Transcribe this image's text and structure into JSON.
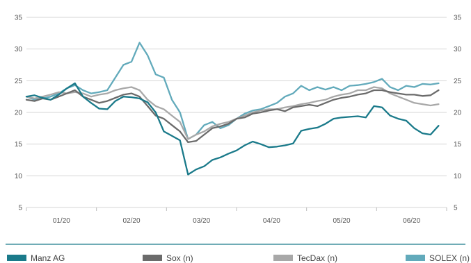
{
  "chart_data": {
    "type": "line",
    "title": "",
    "xlabel": "",
    "ylabel": "",
    "ylim": [
      5,
      35
    ],
    "y_ticks": [
      5,
      10,
      15,
      20,
      25,
      30,
      35
    ],
    "y_tick_labels": [
      "5",
      "10",
      "15",
      "20",
      "25",
      "30",
      "35"
    ],
    "y_axis_both_sides": true,
    "x_domain": [
      0,
      26
    ],
    "x_tick_labels": [
      "01/20",
      "02/20",
      "03/20",
      "04/20",
      "05/20",
      "06/20"
    ],
    "grid": "horizontal",
    "legend_position": "bottom",
    "series": [
      {
        "name": "Manz AG",
        "color": "#1a7a8a",
        "x": [
          0,
          0.5,
          1,
          1.5,
          2,
          2.5,
          3,
          3.5,
          4,
          4.5,
          5,
          5.5,
          6,
          6.5,
          7,
          7.5,
          8,
          8.5,
          9,
          9.5,
          10,
          10.5,
          11,
          11.5,
          12,
          12.5,
          13,
          13.5,
          14,
          14.5,
          15,
          15.5,
          16,
          16.5,
          17,
          17.5,
          18,
          18.5,
          19,
          19.5,
          20,
          20.5,
          21,
          21.5,
          22,
          22.5,
          23,
          23.5,
          24,
          24.5,
          25,
          25.5
        ],
        "values": [
          22.5,
          22.7,
          22.3,
          22.0,
          22.8,
          23.8,
          24.6,
          22.5,
          21.5,
          20.6,
          20.5,
          21.8,
          22.5,
          22.4,
          22.2,
          21.6,
          20.0,
          17.0,
          16.3,
          15.6,
          10.2,
          11.0,
          11.5,
          12.5,
          12.9,
          13.5,
          14.0,
          14.8,
          15.4,
          15.0,
          14.5,
          14.6,
          14.8,
          15.1,
          17.1,
          17.4,
          17.6,
          18.2,
          19.0,
          19.2,
          19.3,
          19.4,
          19.2,
          21.0,
          20.8,
          19.5,
          19.0,
          18.7,
          17.5,
          16.7,
          16.5,
          17.9
        ]
      },
      {
        "name": "Sox (n)",
        "color": "#6b6b6b",
        "x": [
          0,
          0.5,
          1,
          1.5,
          2,
          2.5,
          3,
          3.5,
          4,
          4.5,
          5,
          5.5,
          6,
          6.5,
          7,
          7.5,
          8,
          8.5,
          9,
          9.5,
          10,
          10.5,
          11,
          11.5,
          12,
          12.5,
          13,
          13.5,
          14,
          14.5,
          15,
          15.5,
          16,
          16.5,
          17,
          17.5,
          18,
          18.5,
          19,
          19.5,
          20,
          20.5,
          21,
          21.5,
          22,
          22.5,
          23,
          23.5,
          24,
          24.5,
          25,
          25.5
        ],
        "values": [
          22.0,
          21.8,
          22.2,
          22.0,
          22.5,
          23.0,
          23.5,
          22.5,
          22.0,
          21.5,
          21.8,
          22.3,
          22.8,
          23.0,
          22.5,
          21.0,
          19.5,
          19.0,
          18.0,
          17.0,
          15.3,
          15.5,
          16.5,
          17.5,
          17.8,
          18.2,
          19.0,
          19.2,
          19.8,
          20.0,
          20.3,
          20.5,
          20.2,
          20.8,
          21.0,
          21.2,
          21.0,
          21.5,
          22.0,
          22.3,
          22.5,
          22.8,
          23.0,
          23.5,
          23.5,
          23.2,
          23.0,
          22.8,
          22.8,
          22.6,
          22.7,
          23.5
        ]
      },
      {
        "name": "TecDax (n)",
        "color": "#a8a8a8",
        "x": [
          0,
          0.5,
          1,
          1.5,
          2,
          2.5,
          3,
          3.5,
          4,
          4.5,
          5,
          5.5,
          6,
          6.5,
          7,
          7.5,
          8,
          8.5,
          9,
          9.5,
          10,
          10.5,
          11,
          11.5,
          12,
          12.5,
          13,
          13.5,
          14,
          14.5,
          15,
          15.5,
          16,
          16.5,
          17,
          17.5,
          18,
          18.5,
          19,
          19.5,
          20,
          20.5,
          21,
          21.5,
          22,
          22.5,
          23,
          23.5,
          24,
          24.5,
          25,
          25.5
        ],
        "values": [
          22.5,
          22.2,
          22.5,
          22.8,
          23.2,
          23.0,
          23.2,
          23.0,
          22.5,
          22.8,
          23.0,
          23.5,
          23.8,
          24.0,
          23.5,
          22.0,
          21.0,
          20.5,
          19.5,
          18.5,
          15.8,
          16.5,
          17.0,
          17.8,
          18.2,
          18.5,
          19.0,
          19.5,
          20.0,
          20.3,
          20.5,
          20.5,
          20.8,
          21.0,
          21.3,
          21.5,
          21.8,
          22.0,
          22.5,
          22.8,
          23.0,
          23.5,
          23.5,
          24.0,
          23.8,
          23.0,
          22.5,
          22.0,
          21.5,
          21.3,
          21.1,
          21.3
        ]
      },
      {
        "name": "SOLEX (n)",
        "color": "#62aabb",
        "x": [
          0,
          0.5,
          1,
          1.5,
          2,
          2.5,
          3,
          3.5,
          4,
          4.5,
          5,
          5.5,
          6,
          6.5,
          7,
          7.5,
          8,
          8.5,
          9,
          9.5,
          10,
          10.5,
          11,
          11.5,
          12,
          12.5,
          13,
          13.5,
          14,
          14.5,
          15,
          15.5,
          16,
          16.5,
          17,
          17.5,
          18,
          18.5,
          19,
          19.5,
          20,
          20.5,
          21,
          21.5,
          22,
          22.5,
          23,
          23.5,
          24,
          24.5,
          25,
          25.5
        ],
        "values": [
          22.5,
          22.0,
          22.2,
          22.5,
          23.0,
          23.8,
          24.3,
          23.5,
          23.0,
          23.2,
          23.5,
          25.5,
          27.5,
          28.0,
          31.0,
          29.0,
          26.0,
          25.5,
          22.0,
          20.0,
          15.8,
          16.5,
          18.0,
          18.5,
          17.5,
          18.0,
          19.0,
          19.8,
          20.3,
          20.5,
          21.0,
          21.5,
          22.5,
          23.0,
          24.2,
          23.5,
          24.0,
          23.6,
          24.0,
          23.5,
          24.2,
          24.3,
          24.5,
          24.8,
          25.3,
          24.0,
          23.5,
          24.2,
          24.0,
          24.5,
          24.4,
          24.6
        ]
      }
    ]
  }
}
